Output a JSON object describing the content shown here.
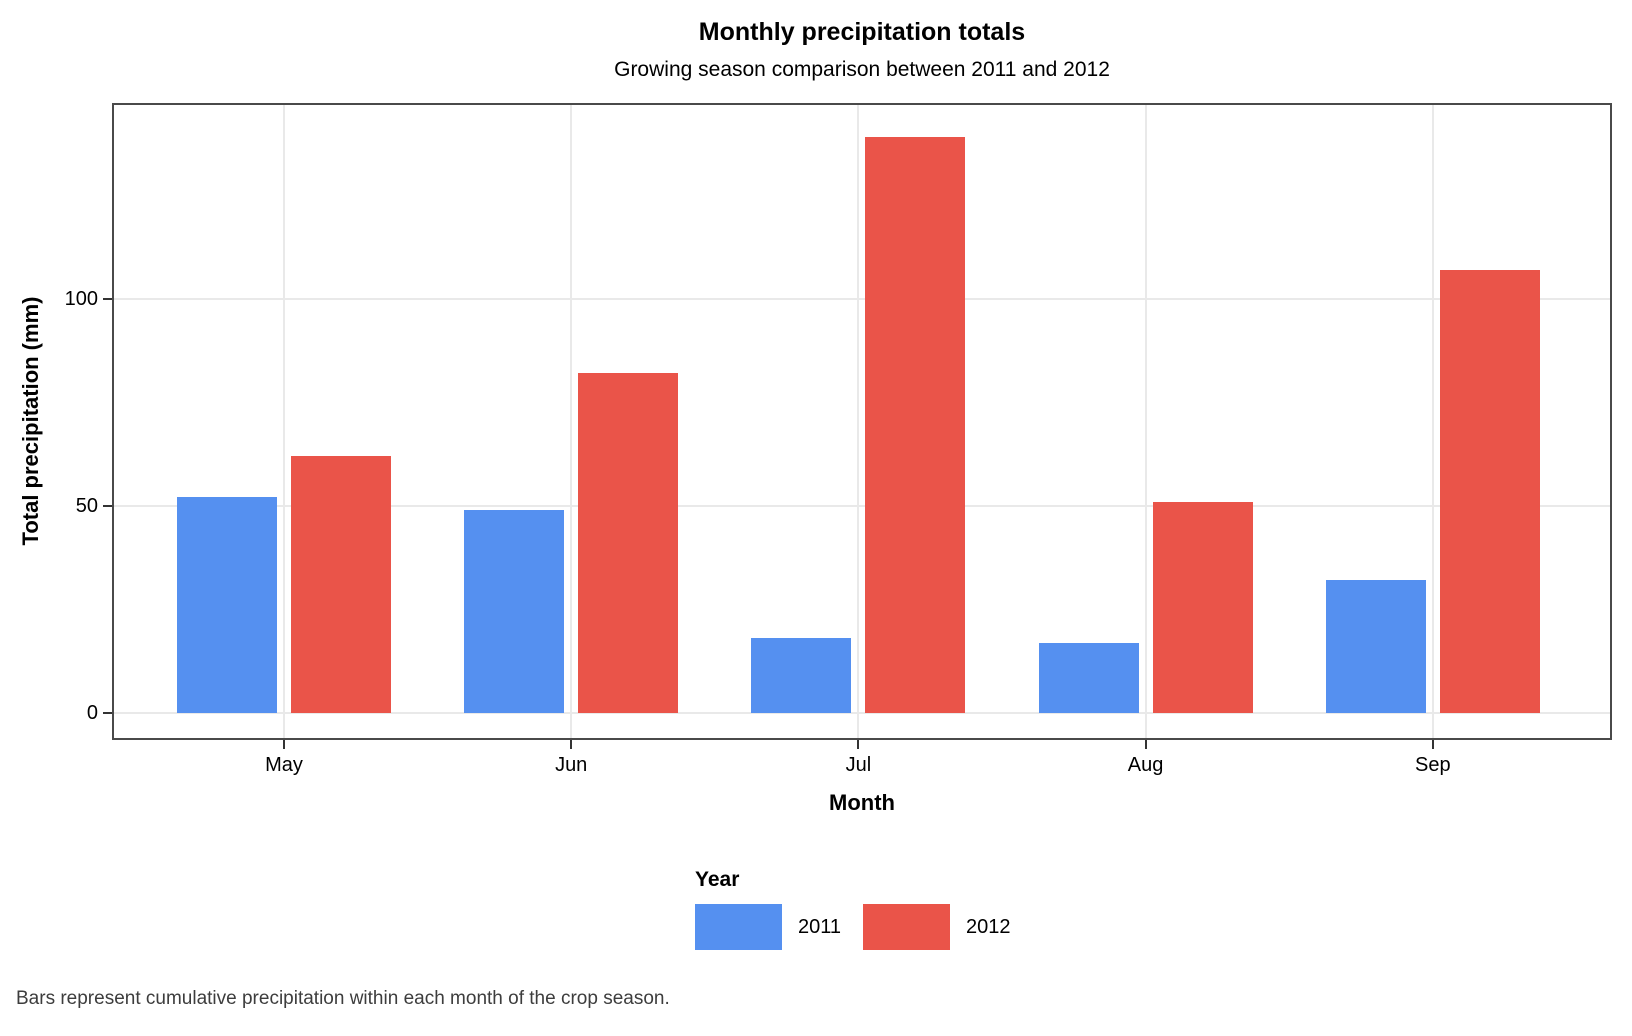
{
  "chart_data": {
    "type": "bar",
    "title": "Monthly precipitation totals",
    "subtitle": "Growing season comparison between 2011 and 2012",
    "xlabel": "Month",
    "ylabel": "Total precipitation (mm)",
    "legend_title": "Year",
    "legend_position": "bottom",
    "caption": "Bars represent cumulative precipitation within each month of the crop season.",
    "categories": [
      "May",
      "Jun",
      "Jul",
      "Aug",
      "Sep"
    ],
    "series": [
      {
        "name": "2011",
        "color": "#5590F0",
        "values": [
          52,
          49,
          18,
          17,
          32
        ]
      },
      {
        "name": "2012",
        "color": "#EA5449",
        "values": [
          62,
          82,
          139,
          51,
          107
        ]
      }
    ],
    "yticks": [
      0,
      50,
      100
    ],
    "ylim": [
      0,
      147
    ],
    "grid": "major-horizontal-and-vertical",
    "gridline_color": "#e9e9e9",
    "panel_border_color": "#4a4a4a"
  }
}
